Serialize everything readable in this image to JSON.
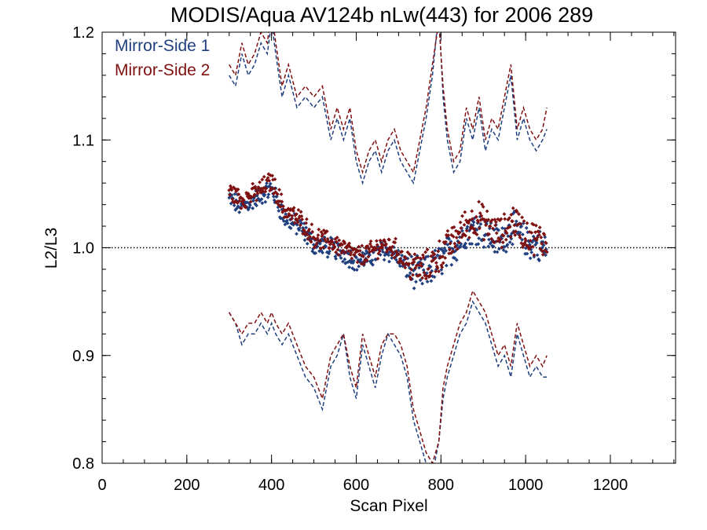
{
  "chart_data": {
    "type": "scatter",
    "title": "MODIS/Aqua AV124b nLw(443) for 2006 289",
    "xlabel": "Scan Pixel",
    "ylabel": "L2/L3",
    "xlim": [
      0,
      1354
    ],
    "ylim": [
      0.8,
      1.2
    ],
    "x_ticks": [
      0,
      200,
      400,
      600,
      800,
      1000,
      1200
    ],
    "x_tick_labels": [
      "0",
      "200",
      "400",
      "600",
      "800",
      "1000",
      "1200"
    ],
    "y_ticks": [
      0.8,
      0.9,
      1.0,
      1.1,
      1.2
    ],
    "y_tick_labels": [
      "0.8",
      "0.9",
      "1.0",
      "1.1",
      "1.2"
    ],
    "x_minor_step": 50,
    "y_minor_step": 0.02,
    "reference_line": 1.0,
    "legend_position": "top-left",
    "colors": {
      "ms1": "#1f3f7f",
      "ms2": "#7f1010",
      "reference": "#000000"
    },
    "series": [
      {
        "name": "Mirror-Side 1",
        "color": "#1f3f7f",
        "mean": {
          "x": [
            300,
            330,
            360,
            400,
            430,
            470,
            500,
            540,
            570,
            600,
            630,
            660,
            690,
            720,
            750,
            770,
            790,
            810,
            830,
            860,
            890,
            910,
            940,
            970,
            1000,
            1030,
            1050
          ],
          "y": [
            1.045,
            1.038,
            1.045,
            1.055,
            1.028,
            1.018,
            1.003,
            1.0,
            0.995,
            0.988,
            0.99,
            0.998,
            0.995,
            0.98,
            0.975,
            0.978,
            0.985,
            0.993,
            1.0,
            1.015,
            1.02,
            1.012,
            1.005,
            1.02,
            1.005,
            1.002,
            0.998
          ]
        },
        "upper": {
          "x": [
            300,
            315,
            330,
            345,
            360,
            375,
            390,
            400,
            410,
            425,
            440,
            460,
            480,
            500,
            520,
            540,
            555,
            570,
            585,
            600,
            615,
            630,
            645,
            660,
            675,
            690,
            705,
            720,
            735,
            750,
            765,
            780,
            795,
            805,
            815,
            830,
            845,
            860,
            875,
            890,
            905,
            920,
            935,
            950,
            965,
            980,
            995,
            1010,
            1025,
            1040,
            1050
          ],
          "y": [
            1.16,
            1.15,
            1.18,
            1.16,
            1.17,
            1.19,
            1.18,
            1.21,
            1.18,
            1.14,
            1.16,
            1.13,
            1.14,
            1.13,
            1.14,
            1.1,
            1.12,
            1.1,
            1.12,
            1.08,
            1.06,
            1.08,
            1.09,
            1.07,
            1.09,
            1.1,
            1.08,
            1.07,
            1.06,
            1.09,
            1.12,
            1.16,
            1.22,
            1.14,
            1.1,
            1.07,
            1.08,
            1.12,
            1.1,
            1.13,
            1.09,
            1.11,
            1.1,
            1.13,
            1.16,
            1.1,
            1.12,
            1.1,
            1.09,
            1.1,
            1.11
          ]
        },
        "lower": {
          "x": [
            300,
            315,
            330,
            345,
            360,
            375,
            390,
            400,
            410,
            425,
            440,
            460,
            480,
            500,
            520,
            540,
            555,
            570,
            585,
            600,
            615,
            630,
            645,
            660,
            675,
            690,
            705,
            720,
            735,
            750,
            765,
            780,
            795,
            805,
            815,
            830,
            845,
            860,
            875,
            890,
            905,
            920,
            935,
            950,
            965,
            980,
            995,
            1010,
            1025,
            1040,
            1050
          ],
          "y": [
            0.94,
            0.93,
            0.91,
            0.92,
            0.92,
            0.93,
            0.92,
            0.93,
            0.92,
            0.91,
            0.92,
            0.9,
            0.88,
            0.87,
            0.85,
            0.89,
            0.9,
            0.92,
            0.88,
            0.86,
            0.91,
            0.89,
            0.87,
            0.9,
            0.92,
            0.91,
            0.9,
            0.88,
            0.84,
            0.82,
            0.8,
            0.79,
            0.82,
            0.86,
            0.88,
            0.9,
            0.92,
            0.93,
            0.95,
            0.94,
            0.93,
            0.91,
            0.89,
            0.9,
            0.88,
            0.92,
            0.9,
            0.88,
            0.89,
            0.88,
            0.88
          ]
        }
      },
      {
        "name": "Mirror-Side 2",
        "color": "#7f1010",
        "mean": {
          "x": [
            300,
            330,
            360,
            400,
            430,
            470,
            500,
            540,
            570,
            600,
            630,
            660,
            690,
            720,
            750,
            770,
            790,
            810,
            830,
            860,
            890,
            910,
            940,
            970,
            1000,
            1030,
            1050
          ],
          "y": [
            1.052,
            1.045,
            1.05,
            1.062,
            1.035,
            1.025,
            1.01,
            1.005,
            1.0,
            0.992,
            0.995,
            1.003,
            1.0,
            0.985,
            0.98,
            0.983,
            0.99,
            0.998,
            1.006,
            1.022,
            1.028,
            1.02,
            1.012,
            1.026,
            1.012,
            1.008,
            1.005
          ]
        },
        "upper": {
          "x": [
            300,
            315,
            330,
            345,
            360,
            375,
            390,
            400,
            410,
            425,
            440,
            460,
            480,
            500,
            520,
            540,
            555,
            570,
            585,
            600,
            615,
            630,
            645,
            660,
            675,
            690,
            705,
            720,
            735,
            750,
            765,
            780,
            795,
            805,
            815,
            830,
            845,
            860,
            875,
            890,
            905,
            920,
            935,
            950,
            965,
            980,
            995,
            1010,
            1025,
            1040,
            1050
          ],
          "y": [
            1.17,
            1.16,
            1.19,
            1.17,
            1.18,
            1.2,
            1.19,
            1.22,
            1.19,
            1.15,
            1.17,
            1.14,
            1.15,
            1.14,
            1.15,
            1.11,
            1.13,
            1.11,
            1.13,
            1.09,
            1.07,
            1.09,
            1.1,
            1.08,
            1.1,
            1.11,
            1.09,
            1.08,
            1.07,
            1.1,
            1.13,
            1.17,
            1.21,
            1.15,
            1.11,
            1.08,
            1.09,
            1.13,
            1.11,
            1.14,
            1.1,
            1.12,
            1.11,
            1.14,
            1.17,
            1.11,
            1.13,
            1.11,
            1.1,
            1.11,
            1.13
          ]
        },
        "lower": {
          "x": [
            300,
            315,
            330,
            345,
            360,
            375,
            390,
            400,
            410,
            425,
            440,
            460,
            480,
            500,
            520,
            540,
            555,
            570,
            585,
            600,
            615,
            630,
            645,
            660,
            675,
            690,
            705,
            720,
            735,
            750,
            765,
            780,
            795,
            805,
            815,
            830,
            845,
            860,
            875,
            890,
            905,
            920,
            935,
            950,
            965,
            980,
            995,
            1010,
            1025,
            1040,
            1050
          ],
          "y": [
            0.94,
            0.93,
            0.92,
            0.93,
            0.93,
            0.94,
            0.93,
            0.94,
            0.93,
            0.92,
            0.93,
            0.91,
            0.89,
            0.88,
            0.86,
            0.9,
            0.91,
            0.92,
            0.89,
            0.87,
            0.92,
            0.9,
            0.88,
            0.91,
            0.92,
            0.92,
            0.91,
            0.89,
            0.85,
            0.83,
            0.81,
            0.8,
            0.82,
            0.87,
            0.89,
            0.91,
            0.93,
            0.94,
            0.96,
            0.95,
            0.94,
            0.92,
            0.9,
            0.91,
            0.89,
            0.93,
            0.91,
            0.89,
            0.9,
            0.89,
            0.9
          ]
        }
      }
    ]
  }
}
